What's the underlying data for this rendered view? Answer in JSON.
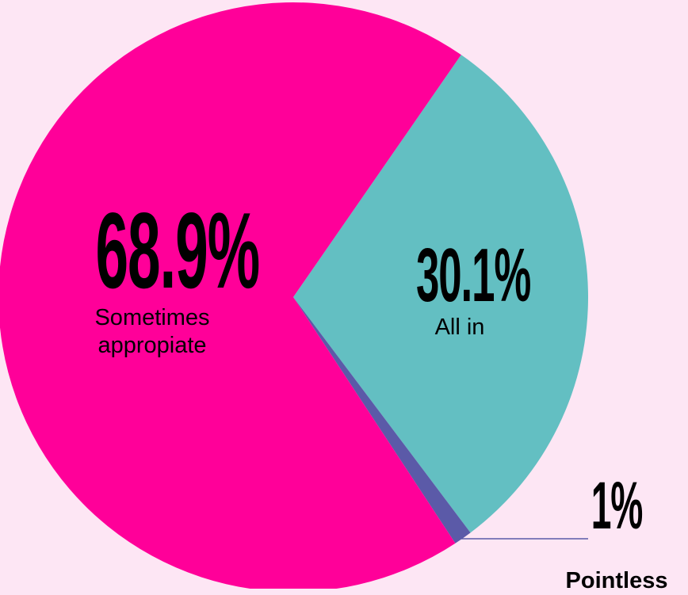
{
  "chart_data": {
    "type": "pie",
    "categories": [
      "All in",
      "Pointless",
      "Sometimes appropiate"
    ],
    "values": [
      30.1,
      1,
      68.9
    ],
    "value_labels": [
      "30.1%",
      "1%",
      "68.9%"
    ],
    "colors": [
      "#63bfc2",
      "#5b5aa8",
      "#ff0099"
    ]
  }
}
